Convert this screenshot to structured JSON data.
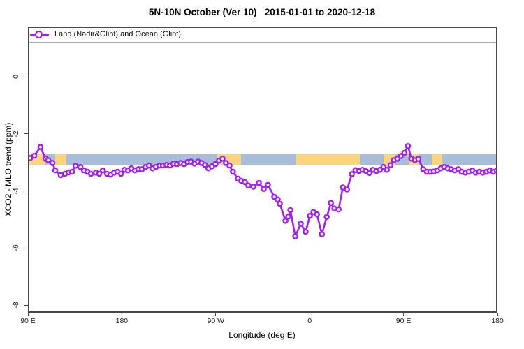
{
  "chart_data": {
    "type": "line",
    "title": "5N-10N October (Ver 10)   2015-01-01 to 2020-12-18",
    "xlabel": "Longitude (deg E)",
    "ylabel": "XCO2 - MLO trend (ppm)",
    "xlim_deg_e_extended": [
      90,
      540
    ],
    "ylim": [
      -8.27,
      1.76
    ],
    "grid": false,
    "legend_position": "top-left-strip",
    "x_ticks": [
      {
        "lon": 90,
        "label": "90 E"
      },
      {
        "lon": 180,
        "label": "180"
      },
      {
        "lon": 270,
        "label": "90 W"
      },
      {
        "lon": 360,
        "label": "0"
      },
      {
        "lon": 450,
        "label": "90 E"
      },
      {
        "lon": 540,
        "label": "180"
      }
    ],
    "y_ticks": [
      {
        "v": 0,
        "label": "0"
      },
      {
        "v": -2,
        "label": "-2"
      },
      {
        "v": -4,
        "label": "-4"
      },
      {
        "v": -6,
        "label": "-6"
      },
      {
        "v": -8,
        "label": "-8"
      }
    ],
    "colors": {
      "series": "#a020f0",
      "marker_fill": "#ffffff",
      "ocean": "#a7bdd9",
      "land": "#fdd47e",
      "axis": "#4a4a4a"
    },
    "map_strip": {
      "note": "coastline band of the 5N-10N zone drawn across the plot",
      "ppm_top": -2.71,
      "ppm_bottom": -3.08,
      "land_segments_deg_e": [
        [
          90,
          107
        ],
        [
          116,
          127
        ],
        [
          271,
          294
        ],
        [
          347,
          408
        ],
        [
          431,
          442
        ],
        [
          455,
          465
        ],
        [
          477,
          487
        ]
      ]
    },
    "series": [
      {
        "name": "Land (Nadir&Glint) and Ocean (Glint)",
        "color": "#a020f0",
        "marker": "open-circle",
        "points": [
          [
            92,
            -2.85
          ],
          [
            96,
            -2.77
          ],
          [
            102,
            -2.46
          ],
          [
            106.8,
            -2.87
          ],
          [
            109.4,
            -2.92
          ],
          [
            113.5,
            -3.02
          ],
          [
            116.2,
            -3.28
          ],
          [
            121.5,
            -3.45
          ],
          [
            125.5,
            -3.4
          ],
          [
            128.9,
            -3.35
          ],
          [
            132.2,
            -3.33
          ],
          [
            135.6,
            -3.12
          ],
          [
            140.3,
            -3.16
          ],
          [
            143.7,
            -3.28
          ],
          [
            147,
            -3.33
          ],
          [
            150.4,
            -3.4
          ],
          [
            155.1,
            -3.36
          ],
          [
            158.4,
            -3.4
          ],
          [
            161.8,
            -3.28
          ],
          [
            165.8,
            -3.4
          ],
          [
            169.1,
            -3.43
          ],
          [
            172.5,
            -3.36
          ],
          [
            175.8,
            -3.33
          ],
          [
            179.2,
            -3.4
          ],
          [
            182.5,
            -3.26
          ],
          [
            185.9,
            -3.28
          ],
          [
            189.2,
            -3.21
          ],
          [
            192.6,
            -3.28
          ],
          [
            196,
            -3.24
          ],
          [
            199.3,
            -3.24
          ],
          [
            202.7,
            -3.16
          ],
          [
            206,
            -3.11
          ],
          [
            209.4,
            -3.21
          ],
          [
            212.7,
            -3.16
          ],
          [
            216.1,
            -3.11
          ],
          [
            219.4,
            -3.11
          ],
          [
            222.8,
            -3.09
          ],
          [
            226.1,
            -3.11
          ],
          [
            229.5,
            -3.04
          ],
          [
            232.9,
            -3.06
          ],
          [
            236.2,
            -3.02
          ],
          [
            239.6,
            -3.06
          ],
          [
            242.9,
            -2.99
          ],
          [
            246.3,
            -2.97
          ],
          [
            249.6,
            -3.04
          ],
          [
            253,
            -2.97
          ],
          [
            256.3,
            -3.02
          ],
          [
            259.7,
            -3.09
          ],
          [
            263,
            -3.21
          ],
          [
            266.4,
            -3.14
          ],
          [
            269.7,
            -3.06
          ],
          [
            273.1,
            -2.94
          ],
          [
            276.5,
            -2.87
          ],
          [
            279.8,
            -3.02
          ],
          [
            283.2,
            -3.11
          ],
          [
            286.5,
            -3.33
          ],
          [
            291.2,
            -3.57
          ],
          [
            294.5,
            -3.65
          ],
          [
            297.9,
            -3.69
          ],
          [
            301.2,
            -3.81
          ],
          [
            306,
            -3.85
          ],
          [
            311.3,
            -3.72
          ],
          [
            316,
            -3.93
          ],
          [
            320,
            -3.79
          ],
          [
            326.1,
            -4.21
          ],
          [
            329.4,
            -4.3
          ],
          [
            331.4,
            -4.45
          ],
          [
            336.8,
            -5.05
          ],
          [
            339.5,
            -4.9
          ],
          [
            341.5,
            -4.67
          ],
          [
            346.2,
            -5.59
          ],
          [
            351.5,
            -5.15
          ],
          [
            356.2,
            -5.43
          ],
          [
            360.3,
            -4.87
          ],
          [
            363.6,
            -4.74
          ],
          [
            367,
            -4.82
          ],
          [
            371.7,
            -5.52
          ],
          [
            376.4,
            -4.91
          ],
          [
            380.4,
            -4.42
          ],
          [
            383.7,
            -4.62
          ],
          [
            387.8,
            -4.65
          ],
          [
            391.8,
            -3.88
          ],
          [
            395.8,
            -3.95
          ],
          [
            400.5,
            -3.41
          ],
          [
            403.9,
            -3.27
          ],
          [
            407.2,
            -3.3
          ],
          [
            410.6,
            -3.26
          ],
          [
            413.9,
            -3.3
          ],
          [
            417.3,
            -3.37
          ],
          [
            420.6,
            -3.26
          ],
          [
            424,
            -3.3
          ],
          [
            427.3,
            -3.26
          ],
          [
            430.7,
            -3.16
          ],
          [
            434,
            -3.26
          ],
          [
            437.4,
            -3.1
          ],
          [
            440.7,
            -2.92
          ],
          [
            444.1,
            -2.87
          ],
          [
            447.4,
            -2.78
          ],
          [
            450.8,
            -2.67
          ],
          [
            454.2,
            -2.43
          ],
          [
            457.5,
            -2.87
          ],
          [
            460.9,
            -2.92
          ],
          [
            464.2,
            -2.88
          ],
          [
            468.9,
            -3.24
          ],
          [
            472.3,
            -3.33
          ],
          [
            475.6,
            -3.33
          ],
          [
            479,
            -3.32
          ],
          [
            482.3,
            -3.28
          ],
          [
            485.7,
            -3.21
          ],
          [
            489,
            -3.16
          ],
          [
            492.4,
            -3.21
          ],
          [
            495.7,
            -3.24
          ],
          [
            499.1,
            -3.28
          ],
          [
            502.5,
            -3.24
          ],
          [
            505.8,
            -3.33
          ],
          [
            509.2,
            -3.36
          ],
          [
            512.5,
            -3.33
          ],
          [
            515.9,
            -3.28
          ],
          [
            519.2,
            -3.36
          ],
          [
            522.6,
            -3.33
          ],
          [
            525.9,
            -3.36
          ],
          [
            529.3,
            -3.33
          ],
          [
            532.6,
            -3.28
          ],
          [
            536,
            -3.33
          ],
          [
            539.4,
            -3.28
          ]
        ]
      }
    ]
  }
}
